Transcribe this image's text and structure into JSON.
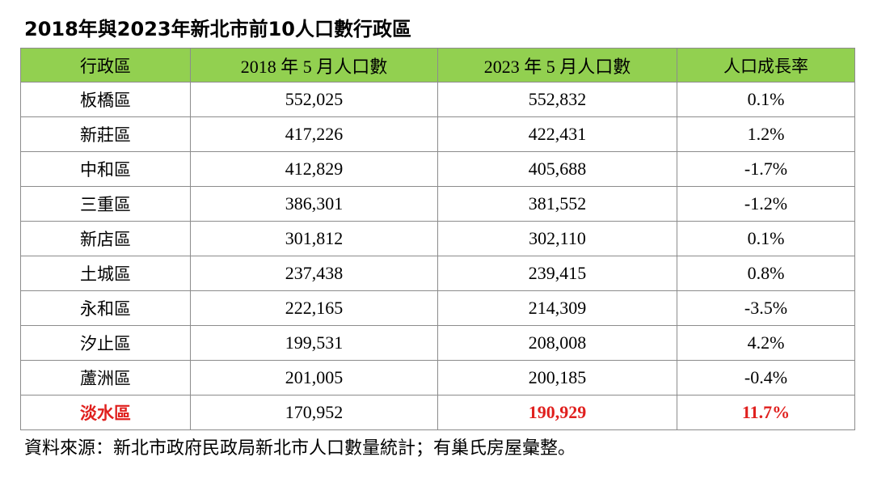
{
  "title": "2018年與2023年新北市前10人口數行政區",
  "table": {
    "headers": [
      "行政區",
      "2018 年 5 月人口數",
      "2023 年 5 月人口數",
      "人口成長率"
    ],
    "rows": [
      {
        "district": "板橋區",
        "pop2018": "552,025",
        "pop2023": "552,832",
        "growth": "0.1%"
      },
      {
        "district": "新莊區",
        "pop2018": "417,226",
        "pop2023": "422,431",
        "growth": "1.2%"
      },
      {
        "district": "中和區",
        "pop2018": "412,829",
        "pop2023": "405,688",
        "growth": "-1.7%"
      },
      {
        "district": "三重區",
        "pop2018": "386,301",
        "pop2023": "381,552",
        "growth": "-1.2%"
      },
      {
        "district": "新店區",
        "pop2018": "301,812",
        "pop2023": "302,110",
        "growth": "0.1%"
      },
      {
        "district": "土城區",
        "pop2018": "237,438",
        "pop2023": "239,415",
        "growth": "0.8%"
      },
      {
        "district": "永和區",
        "pop2018": "222,165",
        "pop2023": "214,309",
        "growth": "-3.5%"
      },
      {
        "district": "汐止區",
        "pop2018": "199,531",
        "pop2023": "208,008",
        "growth": "4.2%"
      },
      {
        "district": "蘆洲區",
        "pop2018": "201,005",
        "pop2023": "200,185",
        "growth": "-0.4%"
      },
      {
        "district": "淡水區",
        "pop2018": "170,952",
        "pop2023": "190,929",
        "growth": "11.7%"
      }
    ]
  },
  "source": "資料來源：新北市政府民政局新北市人口數量統計；有巢氏房屋彙整。",
  "colors": {
    "header_bg": "#92d050",
    "highlight_text": "#e0201e",
    "border": "#8c8c8c"
  }
}
